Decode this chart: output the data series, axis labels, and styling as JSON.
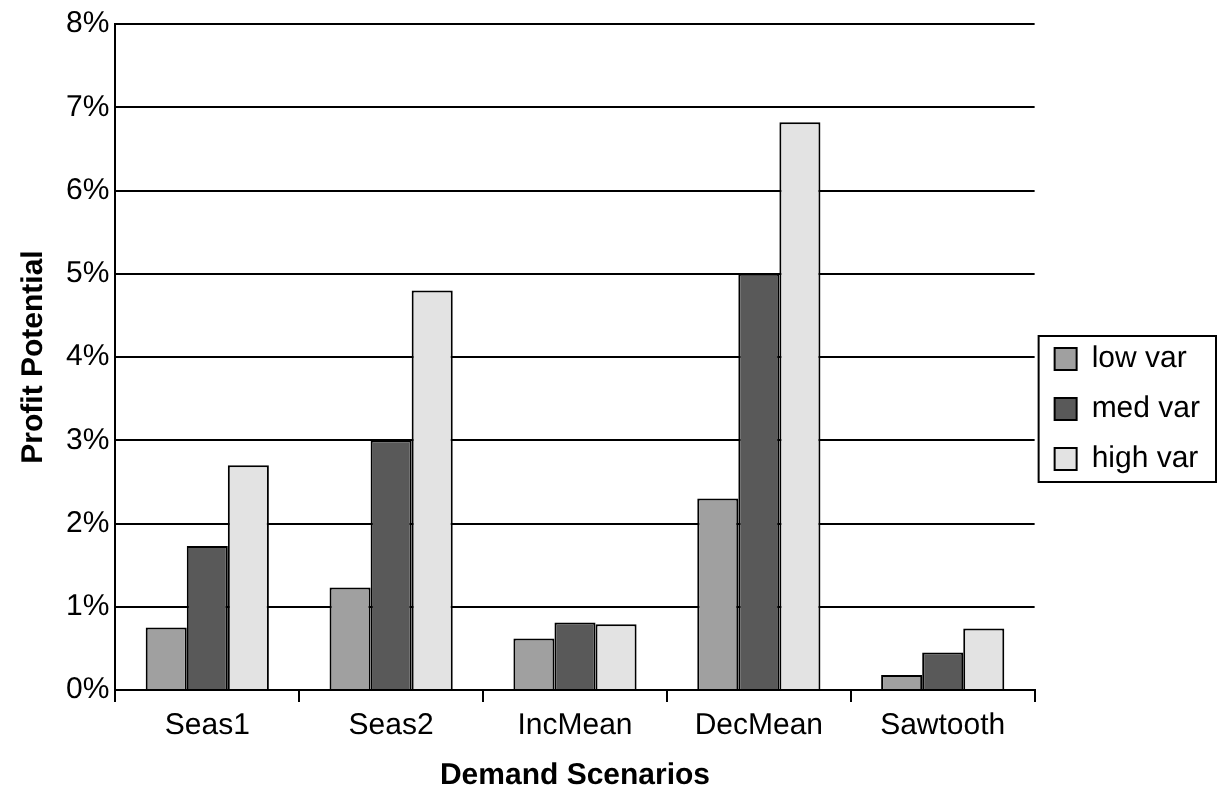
{
  "chart_data": {
    "type": "bar",
    "xlabel": "Demand Scenarios",
    "ylabel": "Profit Potential",
    "categories": [
      "Seas1",
      "Seas2",
      "IncMean",
      "DecMean",
      "Sawtooth"
    ],
    "series": [
      {
        "name": "low var",
        "color": "#a0a0a0",
        "values": [
          0.75,
          1.23,
          0.62,
          2.3,
          0.18
        ]
      },
      {
        "name": "med var",
        "color": "#595959",
        "values": [
          1.73,
          3.0,
          0.81,
          5.0,
          0.45
        ]
      },
      {
        "name": "high var",
        "color": "#e3e3e3",
        "values": [
          2.7,
          4.8,
          0.79,
          6.82,
          0.74
        ]
      }
    ],
    "ylim": [
      0,
      8
    ],
    "yticks": [
      {
        "value": 0,
        "label": "0%"
      },
      {
        "value": 1,
        "label": "1%"
      },
      {
        "value": 2,
        "label": "2%"
      },
      {
        "value": 3,
        "label": "3%"
      },
      {
        "value": 4,
        "label": "4%"
      },
      {
        "value": 5,
        "label": "5%"
      },
      {
        "value": 6,
        "label": "6%"
      },
      {
        "value": 7,
        "label": "7%"
      },
      {
        "value": 8,
        "label": "8%"
      }
    ],
    "grid": "y",
    "legend": "right"
  }
}
